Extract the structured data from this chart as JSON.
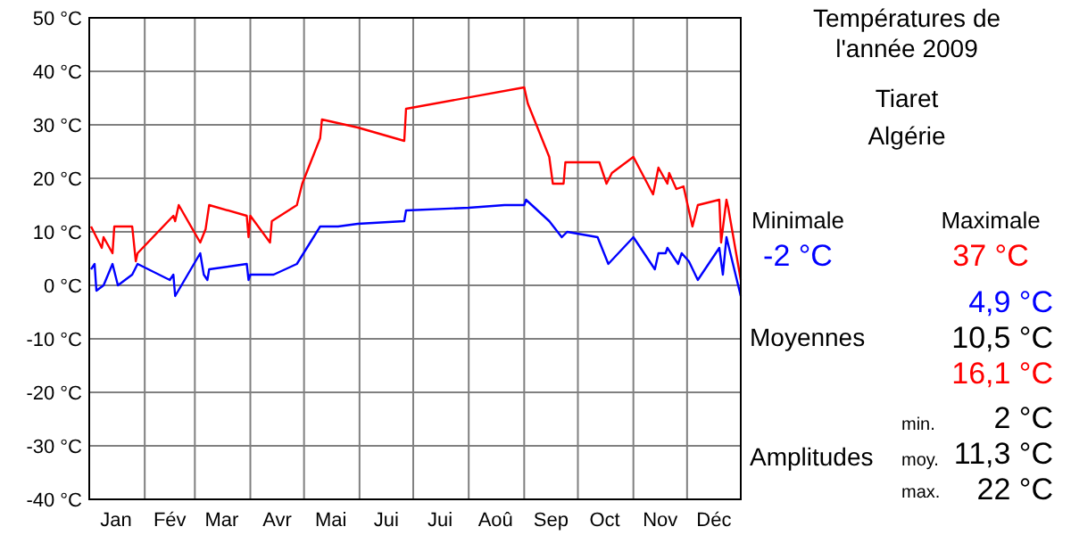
{
  "chart_data": {
    "type": "line",
    "title": "Températures de\nl'année 2009",
    "subtitle": "Tiaret\nAlgérie",
    "xlim": [
      "--01-01",
      "--12-31"
    ],
    "xticks": [
      {
        "value": "--01-01",
        "label": null
      },
      {
        "value": "--01-16",
        "label": "Jan"
      },
      {
        "value": "--02-01",
        "label": null
      },
      {
        "value": "--02-15",
        "label": "Fév"
      },
      {
        "value": "--03-01",
        "label": null
      },
      {
        "value": "--03-16",
        "label": "Mar"
      },
      {
        "value": "--04-01",
        "label": null
      },
      {
        "value": "--04-16",
        "label": "Avr"
      },
      {
        "value": "--05-01",
        "label": null
      },
      {
        "value": "--05-16",
        "label": "Mai"
      },
      {
        "value": "--06-01",
        "label": null
      },
      {
        "value": "--06-16",
        "label": "Jui"
      },
      {
        "value": "--07-01",
        "label": null
      },
      {
        "value": "--07-16",
        "label": "Jui"
      },
      {
        "value": "--08-01",
        "label": null
      },
      {
        "value": "--08-16",
        "label": "Aoû"
      },
      {
        "value": "--09-01",
        "label": null
      },
      {
        "value": "--09-16",
        "label": "Sep"
      },
      {
        "value": "--10-01",
        "label": null
      },
      {
        "value": "--10-16",
        "label": "Oct"
      },
      {
        "value": "--11-01",
        "label": null
      },
      {
        "value": "--11-16",
        "label": "Nov"
      },
      {
        "value": "--12-01",
        "label": null
      },
      {
        "value": "--12-16",
        "label": "Déc"
      },
      {
        "value": "--12-31",
        "label": null
      }
    ],
    "ylim": [
      -40,
      50
    ],
    "yticks": [
      {
        "value": -40,
        "label": "-40 °C"
      },
      {
        "value": -30,
        "label": "-30 °C"
      },
      {
        "value": -20,
        "label": "-20 °C"
      },
      {
        "value": -10,
        "label": "-10 °C"
      },
      {
        "value": 0,
        "label": "0 °C"
      },
      {
        "value": 10,
        "label": "10 °C"
      },
      {
        "value": 20,
        "label": "20 °C"
      },
      {
        "value": 30,
        "label": "30 °C"
      },
      {
        "value": 40,
        "label": "40 °C"
      },
      {
        "value": 50,
        "label": "50 °C"
      }
    ],
    "grid": true,
    "series": [
      {
        "color": "#ff0000",
        "x": [
          "--01-02",
          "--01-08",
          "--01-09",
          "--01-14",
          "--01-15",
          "--01-25",
          "--01-27",
          "--01-28",
          "--02-17",
          "--02-18",
          "--02-20",
          "--03-04",
          "--03-07",
          "--03-09",
          "--03-30",
          "--03-31",
          "--04-01",
          "--04-12",
          "--04-13",
          "--04-27",
          "--04-30",
          "--05-10",
          "--05-11",
          "--05-31",
          "--06-26",
          "--06-27",
          "--09-01",
          "--09-03",
          "--09-15",
          "--09-17",
          "--09-23",
          "--09-24",
          "--10-13",
          "--10-17",
          "--10-20",
          "--11-01",
          "--11-12",
          "--11-15",
          "--11-20",
          "--11-21",
          "--11-25",
          "--11-29",
          "--12-04",
          "--12-07",
          "--12-19",
          "--12-20",
          "--12-23",
          "--12-24",
          "--12-31"
        ],
        "values": [
          11,
          7,
          9,
          6,
          11,
          11,
          4.5,
          6,
          13,
          12,
          15,
          8,
          10.5,
          15,
          13,
          9,
          13,
          8,
          12,
          15,
          19,
          27.5,
          31,
          29.5,
          27,
          33,
          37,
          34,
          24,
          19,
          19,
          23,
          23,
          19,
          21,
          24,
          17,
          22,
          19,
          21,
          18,
          18.5,
          11,
          15,
          16,
          8,
          16,
          14.5,
          1
        ]
      },
      {
        "color": "#0000ff",
        "x": [
          "--01-02",
          "--01-04",
          "--01-05",
          "--01-09",
          "--01-14",
          "--01-17",
          "--01-25",
          "--01-28",
          "--02-15",
          "--02-17",
          "--02-18",
          "--03-04",
          "--03-06",
          "--03-08",
          "--03-09",
          "--03-30",
          "--03-31",
          "--04-01",
          "--04-14",
          "--04-27",
          "--05-10",
          "--05-20",
          "--05-31",
          "--06-26",
          "--06-27",
          "--08-01",
          "--08-21",
          "--09-01",
          "--09-02",
          "--09-15",
          "--09-22",
          "--09-25",
          "--10-12",
          "--10-18",
          "--11-01",
          "--11-13",
          "--11-15",
          "--11-19",
          "--11-20",
          "--11-26",
          "--11-28",
          "--12-02",
          "--12-07",
          "--12-19",
          "--12-21",
          "--12-23",
          "--12-31"
        ],
        "values": [
          3,
          4,
          -1,
          0,
          4,
          0,
          2,
          4,
          1,
          2,
          -2,
          6,
          2,
          1,
          3,
          4,
          1,
          2,
          2,
          4,
          11,
          11,
          11.5,
          12,
          14,
          14.5,
          15,
          15,
          16,
          12,
          9,
          10,
          9,
          4,
          9,
          3,
          6,
          6,
          7,
          4,
          6,
          4.5,
          1,
          7,
          2,
          9,
          -2
        ]
      }
    ],
    "annotations": [
      "Minimale",
      "Maximale",
      "-2 °C",
      "37 °C",
      "4,9 °C",
      "Moyennes",
      "10,5 °C",
      "16,1 °C",
      "min.",
      "2 °C",
      "Amplitudes",
      "moy.",
      "11,3 °C",
      "max.",
      "22 °C"
    ]
  }
}
